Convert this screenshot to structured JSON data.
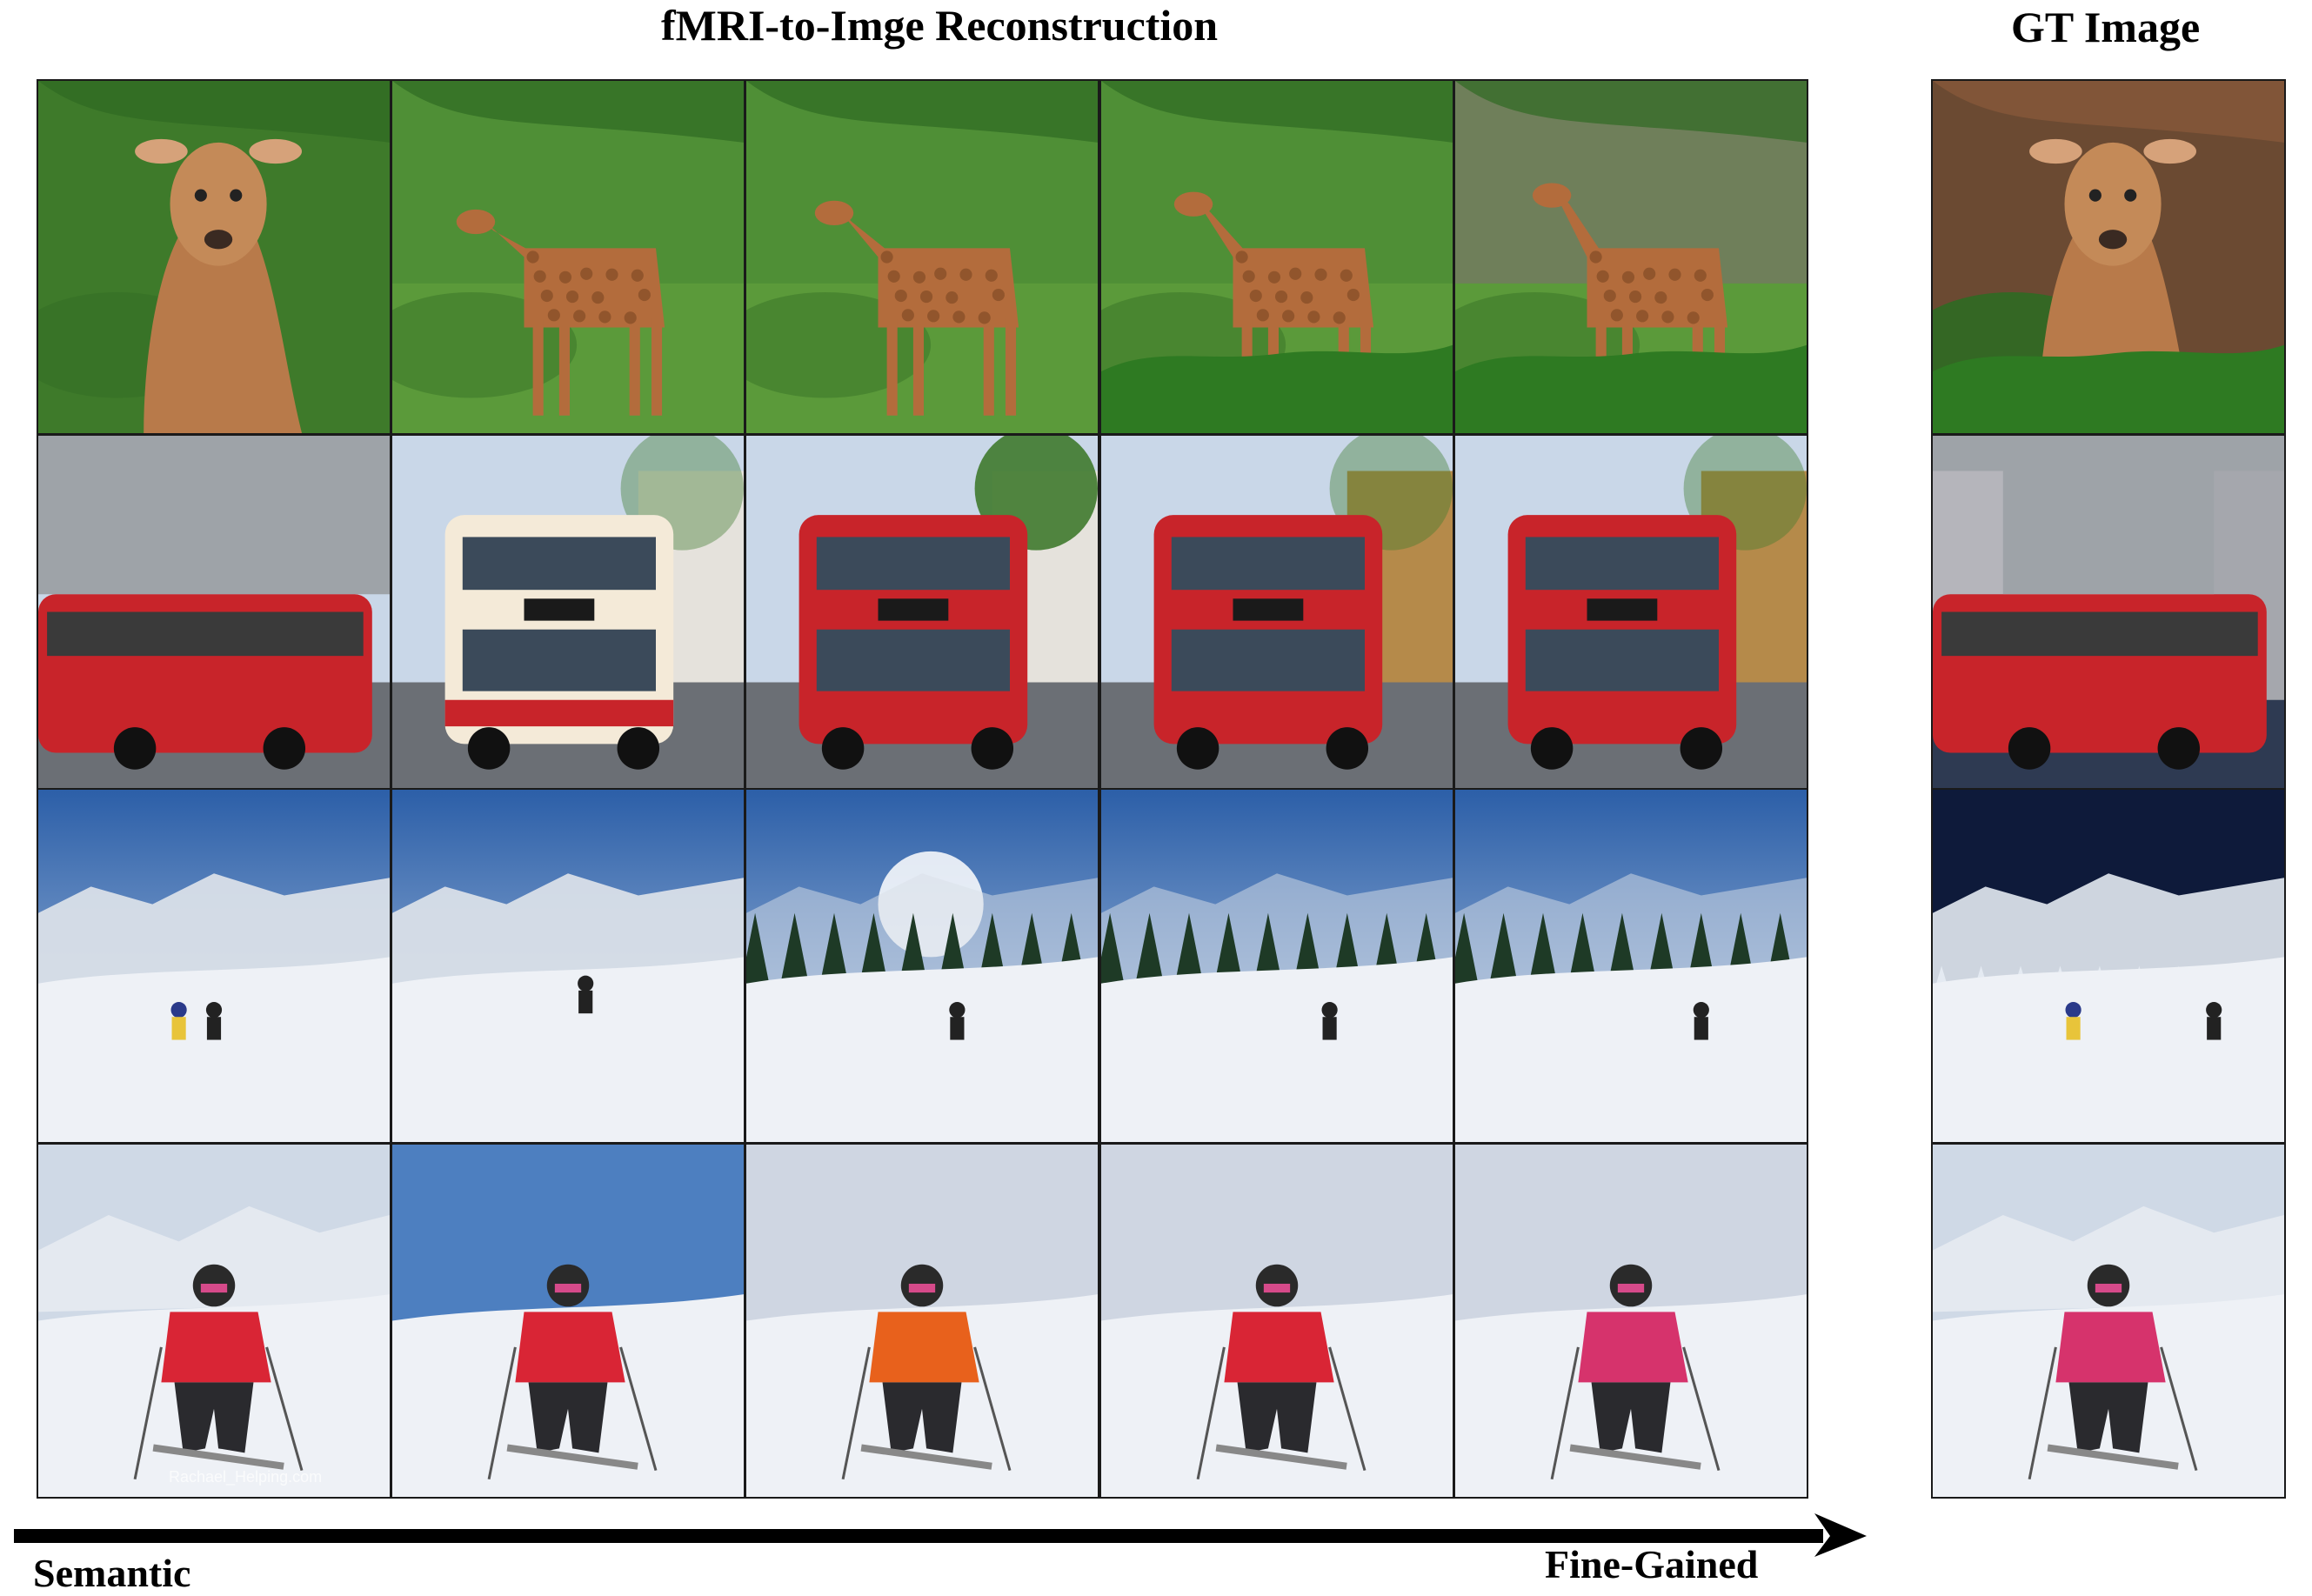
{
  "figure": {
    "main_title": "fMRI-to-Imge Reconstruction",
    "gt_title": "GT Image",
    "axis_left_label": "Semantic",
    "axis_right_label": "Fine-Gained",
    "watermark_text": "Rachael_Helping.com"
  },
  "rows": [
    {
      "subject": "giraffe",
      "scene": "green-foliage",
      "count": 5
    },
    {
      "subject": "red-bus",
      "scene": "street-buildings",
      "count": 5
    },
    {
      "subject": "skier-distant",
      "scene": "snow-slope-blue-sky",
      "count": 5
    },
    {
      "subject": "skier-closeup",
      "scene": "snow-slope-overcast",
      "count": 5
    }
  ],
  "colors": {
    "grass": "#4d8a2e",
    "bus_red": "#c8242a",
    "sky_blue": "#3f73b8",
    "snow": "#eef1f6",
    "jacket_red": "#d92535",
    "jacket_orange": "#e8611c",
    "jacket_pink": "#d6336c"
  }
}
